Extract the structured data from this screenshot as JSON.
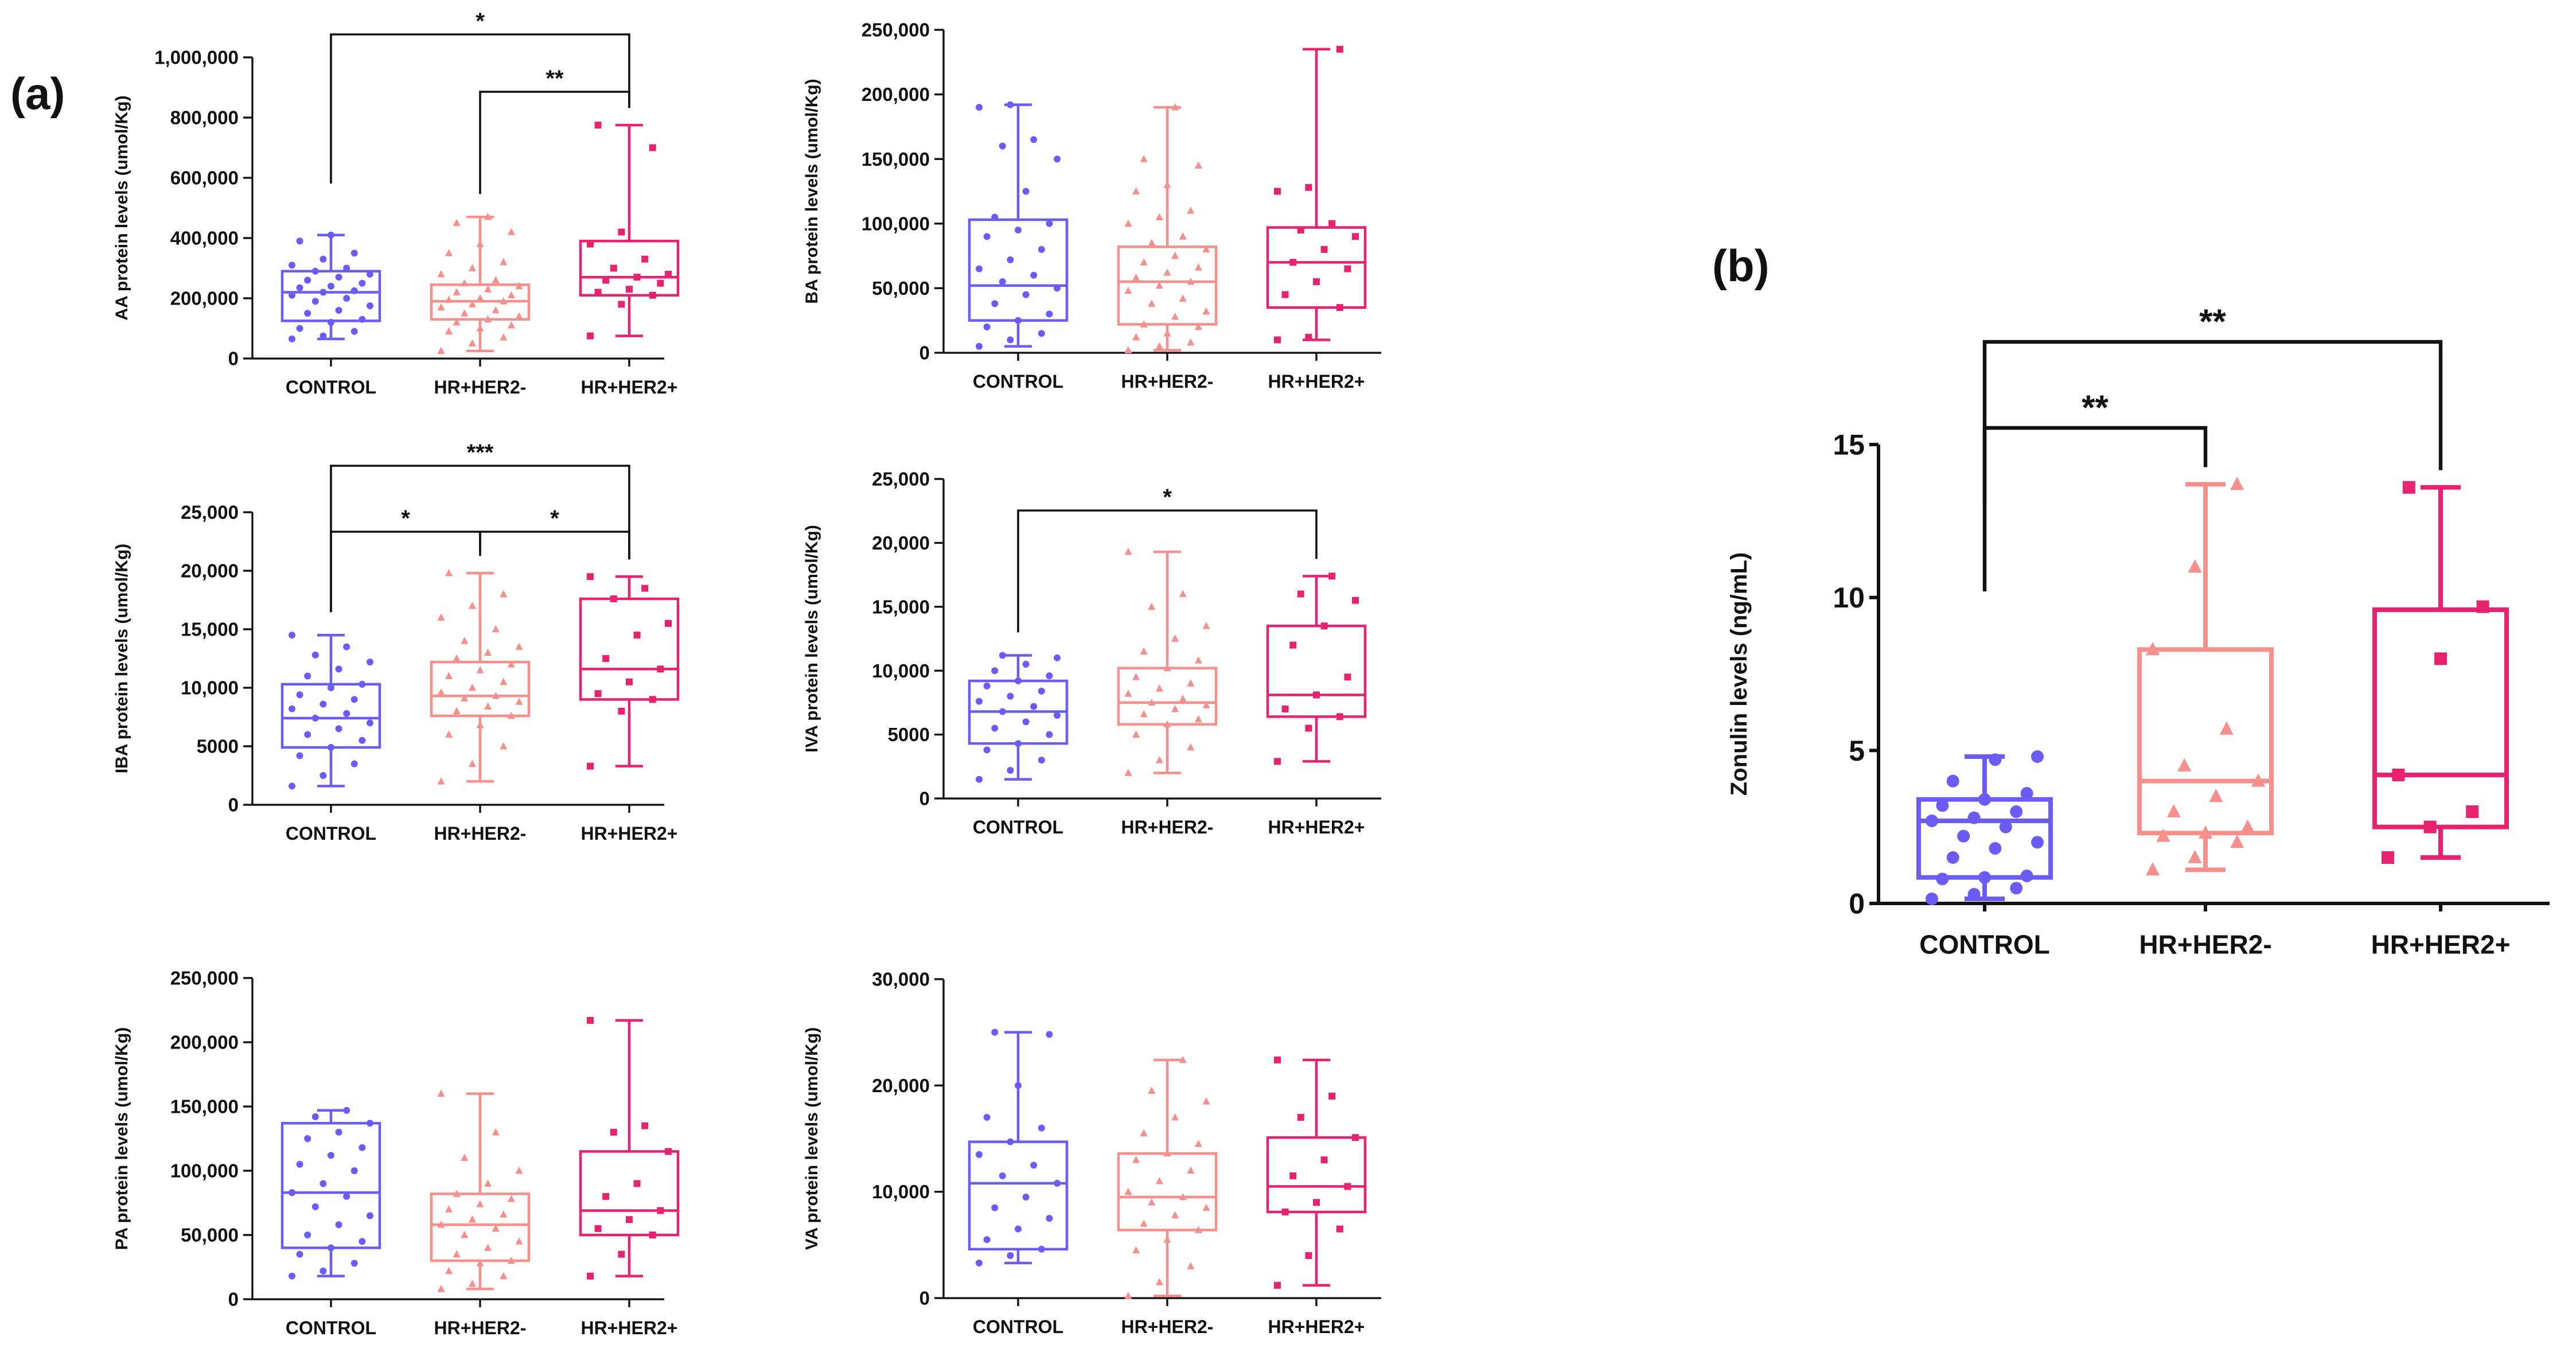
{
  "panel_labels": {
    "a": "(a)",
    "b": "(b)"
  },
  "colors": {
    "CONTROL": "#6a5cf5",
    "HR+HER2-": "#f6908c",
    "HR+HER2+": "#e8226e",
    "axis": "#111111"
  },
  "chart_data": [
    {
      "id": "AA",
      "type": "box",
      "ylabel": "AA protein levels (umol/Kg)",
      "ylim": [
        0,
        1000000
      ],
      "yticks": [
        0,
        200000,
        400000,
        600000,
        800000,
        1000000
      ],
      "ytick_labels": [
        "0",
        "200,000",
        "400,000",
        "600,000",
        "800,000",
        "1,000,000"
      ],
      "categories": [
        "CONTROL",
        "HR+HER2-",
        "HR+HER2+"
      ],
      "boxes": [
        {
          "min": 65000,
          "q1": 125000,
          "median": 220000,
          "q3": 290000,
          "max": 410000
        },
        {
          "min": 25000,
          "q1": 130000,
          "median": 190000,
          "q3": 245000,
          "max": 470000
        },
        {
          "min": 75000,
          "q1": 210000,
          "median": 270000,
          "q3": 390000,
          "max": 775000
        }
      ],
      "points": [
        [
          65000,
          75000,
          90000,
          100000,
          120000,
          130000,
          150000,
          160000,
          175000,
          190000,
          200000,
          210000,
          220000,
          225000,
          235000,
          240000,
          250000,
          260000,
          270000,
          280000,
          290000,
          300000,
          310000,
          330000,
          350000,
          390000,
          410000
        ],
        [
          25000,
          50000,
          70000,
          90000,
          100000,
          110000,
          120000,
          130000,
          140000,
          150000,
          160000,
          170000,
          180000,
          190000,
          195000,
          200000,
          210000,
          220000,
          230000,
          240000,
          250000,
          260000,
          280000,
          300000,
          320000,
          350000,
          380000,
          420000,
          450000,
          470000
        ],
        [
          75000,
          180000,
          210000,
          220000,
          230000,
          250000,
          260000,
          270000,
          280000,
          300000,
          330000,
          380000,
          420000,
          700000,
          775000
        ]
      ],
      "significance": [
        {
          "from": 0,
          "to": 2,
          "label": "*"
        },
        {
          "from": 1,
          "to": 2,
          "label": "**"
        }
      ]
    },
    {
      "id": "BA",
      "type": "box",
      "ylabel": "BA protein levels (umol/Kg)",
      "ylim": [
        0,
        250000
      ],
      "yticks": [
        0,
        50000,
        100000,
        150000,
        200000,
        250000
      ],
      "ytick_labels": [
        "0",
        "50,000",
        "100,000",
        "150,000",
        "200,000",
        "250,000"
      ],
      "categories": [
        "CONTROL",
        "HR+HER2-",
        "HR+HER2+"
      ],
      "boxes": [
        {
          "min": 5000,
          "q1": 25000,
          "median": 52000,
          "q3": 103000,
          "max": 192000
        },
        {
          "min": 2000,
          "q1": 22000,
          "median": 55000,
          "q3": 82000,
          "max": 190000
        },
        {
          "min": 10000,
          "q1": 35000,
          "median": 70000,
          "q3": 97000,
          "max": 235000
        }
      ],
      "points": [
        [
          5000,
          10000,
          15000,
          20000,
          25000,
          30000,
          38000,
          45000,
          50000,
          55000,
          60000,
          65000,
          72000,
          80000,
          90000,
          95000,
          100000,
          105000,
          125000,
          150000,
          160000,
          165000,
          190000,
          192000
        ],
        [
          2000,
          5000,
          8000,
          12000,
          15000,
          20000,
          22000,
          28000,
          32000,
          38000,
          42000,
          48000,
          52000,
          55000,
          58000,
          62000,
          66000,
          70000,
          75000,
          80000,
          85000,
          90000,
          100000,
          105000,
          110000,
          125000,
          130000,
          145000,
          150000,
          190000
        ],
        [
          10000,
          12000,
          35000,
          45000,
          55000,
          65000,
          70000,
          80000,
          90000,
          95000,
          100000,
          125000,
          128000,
          235000
        ]
      ],
      "significance": []
    },
    {
      "id": "IBA",
      "type": "box",
      "ylabel": "IBA protein levels (umol/Kg)",
      "ylim": [
        0,
        25000
      ],
      "yticks": [
        0,
        5000,
        10000,
        15000,
        20000,
        25000
      ],
      "ytick_labels": [
        "0",
        "5000",
        "10,000",
        "15,000",
        "20,000",
        "25,000"
      ],
      "categories": [
        "CONTROL",
        "HR+HER2-",
        "HR+HER2+"
      ],
      "boxes": [
        {
          "min": 1600,
          "q1": 4900,
          "median": 7400,
          "q3": 10300,
          "max": 14500
        },
        {
          "min": 2000,
          "q1": 7600,
          "median": 9300,
          "q3": 12200,
          "max": 19800
        },
        {
          "min": 3300,
          "q1": 9000,
          "median": 11600,
          "q3": 17600,
          "max": 19500
        }
      ],
      "points": [
        [
          1600,
          2500,
          3500,
          4200,
          4900,
          5500,
          6000,
          6500,
          7000,
          7400,
          7800,
          8200,
          8600,
          9000,
          9400,
          10000,
          10300,
          11000,
          11600,
          12200,
          12800,
          13500,
          14500
        ],
        [
          2000,
          3500,
          5000,
          6000,
          6800,
          7600,
          8000,
          8400,
          8800,
          9100,
          9300,
          9600,
          10000,
          10500,
          11000,
          11500,
          12000,
          12500,
          13000,
          13500,
          14000,
          15000,
          16000,
          17000,
          18000,
          19800
        ],
        [
          3300,
          8000,
          9000,
          9500,
          10500,
          11600,
          12500,
          14500,
          15500,
          17600,
          18500,
          19500
        ]
      ],
      "significance": [
        {
          "from": 0,
          "to": 2,
          "label": "***"
        },
        {
          "from": 0,
          "to": 1,
          "label": "*"
        },
        {
          "from": 1,
          "to": 2,
          "label": "*"
        }
      ]
    },
    {
      "id": "IVA",
      "type": "box",
      "ylabel": "IVA protein levels (umol/Kg)",
      "ylim": [
        0,
        25000
      ],
      "yticks": [
        0,
        5000,
        10000,
        15000,
        20000,
        25000
      ],
      "ytick_labels": [
        "0",
        "5000",
        "10,000",
        "15,000",
        "20,000",
        "25,000"
      ],
      "categories": [
        "CONTROL",
        "HR+HER2-",
        "HR+HER2+"
      ],
      "boxes": [
        {
          "min": 1500,
          "q1": 4300,
          "median": 6800,
          "q3": 9200,
          "max": 11200
        },
        {
          "min": 2000,
          "q1": 5800,
          "median": 7500,
          "q3": 10200,
          "max": 19300
        },
        {
          "min": 2900,
          "q1": 6400,
          "median": 8100,
          "q3": 13500,
          "max": 17400
        }
      ],
      "points": [
        [
          1500,
          2200,
          3000,
          3800,
          4300,
          5000,
          5500,
          6000,
          6500,
          6800,
          7200,
          7600,
          8000,
          8400,
          8800,
          9200,
          9600,
          10000,
          10500,
          11000,
          11200
        ],
        [
          2000,
          3000,
          4000,
          5000,
          5800,
          6200,
          6600,
          7000,
          7300,
          7500,
          7800,
          8200,
          8600,
          9000,
          9500,
          10200,
          10800,
          11500,
          12500,
          13500,
          15000,
          16000,
          19300
        ],
        [
          2900,
          5500,
          6400,
          7000,
          8100,
          9500,
          12000,
          13500,
          15500,
          16000,
          17400
        ]
      ],
      "significance": [
        {
          "from": 0,
          "to": 2,
          "label": "*"
        }
      ]
    },
    {
      "id": "PA",
      "type": "box",
      "ylabel": "PA protein levels (umol/Kg)",
      "ylim": [
        0,
        250000
      ],
      "yticks": [
        0,
        50000,
        100000,
        150000,
        200000,
        250000
      ],
      "ytick_labels": [
        "0",
        "50,000",
        "100,000",
        "150,000",
        "200,000",
        "250,000"
      ],
      "categories": [
        "CONTROL",
        "HR+HER2-",
        "HR+HER2+"
      ],
      "boxes": [
        {
          "min": 18000,
          "q1": 40000,
          "median": 83000,
          "q3": 137000,
          "max": 147000
        },
        {
          "min": 8000,
          "q1": 30000,
          "median": 58000,
          "q3": 82000,
          "max": 160000
        },
        {
          "min": 18000,
          "q1": 50000,
          "median": 69000,
          "q3": 115000,
          "max": 217000
        }
      ],
      "points": [
        [
          18000,
          22000,
          28000,
          35000,
          40000,
          45000,
          50000,
          58000,
          65000,
          72000,
          80000,
          83000,
          90000,
          100000,
          105000,
          112000,
          118000,
          125000,
          130000,
          137000,
          142000,
          147000
        ],
        [
          8000,
          12000,
          18000,
          22000,
          28000,
          30000,
          35000,
          40000,
          45000,
          50000,
          55000,
          58000,
          62000,
          66000,
          70000,
          74000,
          78000,
          82000,
          90000,
          100000,
          110000,
          130000,
          160000
        ],
        [
          18000,
          35000,
          50000,
          55000,
          62000,
          69000,
          80000,
          90000,
          115000,
          130000,
          135000,
          217000
        ]
      ],
      "significance": []
    },
    {
      "id": "VA",
      "type": "box",
      "ylabel": "VA protein levels (umol/Kg)",
      "ylim": [
        0,
        30000
      ],
      "yticks": [
        0,
        10000,
        20000,
        30000
      ],
      "ytick_labels": [
        "0",
        "10,000",
        "20,000",
        "30,000"
      ],
      "categories": [
        "CONTROL",
        "HR+HER2-",
        "HR+HER2+"
      ],
      "boxes": [
        {
          "min": 3300,
          "q1": 4600,
          "median": 10800,
          "q3": 14700,
          "max": 25000
        },
        {
          "min": 200,
          "q1": 6400,
          "median": 9500,
          "q3": 13600,
          "max": 22400
        },
        {
          "min": 1200,
          "q1": 8100,
          "median": 10500,
          "q3": 15100,
          "max": 22400
        }
      ],
      "points": [
        [
          3300,
          4000,
          4600,
          5500,
          6500,
          7500,
          8500,
          9500,
          10800,
          11500,
          12500,
          13500,
          14700,
          16000,
          17000,
          20000,
          24800,
          25000
        ],
        [
          200,
          1500,
          3000,
          4500,
          5500,
          6400,
          7000,
          7800,
          8500,
          9000,
          9500,
          10000,
          11000,
          12000,
          13000,
          13600,
          14500,
          15500,
          17000,
          18500,
          19500,
          22400
        ],
        [
          1200,
          4000,
          6500,
          8100,
          9000,
          10500,
          11500,
          13000,
          15100,
          17000,
          19000,
          22400
        ]
      ],
      "significance": []
    },
    {
      "id": "Zonulin",
      "type": "box",
      "ylabel": "Zonulin levels (ng/mL)",
      "ylim": [
        0,
        15
      ],
      "yticks": [
        0,
        5,
        10,
        15
      ],
      "ytick_labels": [
        "0",
        "5",
        "10",
        "15"
      ],
      "categories": [
        "CONTROL",
        "HR+HER2-",
        "HR+HER2+"
      ],
      "boxes": [
        {
          "min": 0.15,
          "q1": 0.85,
          "median": 2.7,
          "q3": 3.4,
          "max": 4.8
        },
        {
          "min": 1.1,
          "q1": 2.3,
          "median": 4.0,
          "q3": 8.3,
          "max": 13.7
        },
        {
          "min": 1.5,
          "q1": 2.5,
          "median": 4.2,
          "q3": 9.6,
          "max": 13.6
        }
      ],
      "points": [
        [
          0.15,
          0.3,
          0.5,
          0.8,
          0.85,
          0.9,
          1.5,
          1.8,
          2.0,
          2.2,
          2.5,
          2.7,
          2.8,
          3.0,
          3.2,
          3.4,
          3.6,
          4.0,
          4.7,
          4.8
        ],
        [
          1.1,
          1.5,
          2.0,
          2.2,
          2.3,
          2.5,
          3.0,
          3.5,
          4.0,
          4.5,
          5.7,
          8.3,
          11.0,
          13.7
        ],
        [
          1.5,
          2.5,
          3.0,
          4.2,
          8.0,
          9.7,
          13.6
        ]
      ],
      "significance": [
        {
          "from": 0,
          "to": 2,
          "label": "**"
        },
        {
          "from": 0,
          "to": 1,
          "label": "**"
        }
      ]
    }
  ]
}
